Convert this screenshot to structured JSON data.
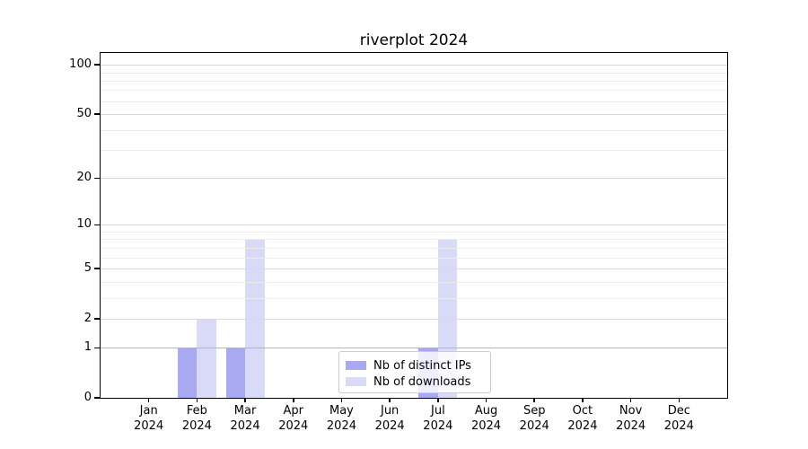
{
  "title": "riverplot 2024",
  "chart_data": {
    "type": "bar",
    "title": "riverplot 2024",
    "categories": [
      "Jan",
      "Feb",
      "Mar",
      "Apr",
      "May",
      "Jun",
      "Jul",
      "Aug",
      "Sep",
      "Oct",
      "Nov",
      "Dec"
    ],
    "year_label": "2024",
    "series": [
      {
        "name": "Nb of distinct IPs",
        "color": "#a9a9f2",
        "values": [
          0,
          1,
          1,
          0,
          0,
          0,
          1,
          0,
          0,
          0,
          0,
          0
        ]
      },
      {
        "name": "Nb of downloads",
        "color": "#d9d9f8",
        "values": [
          0,
          2,
          8,
          0,
          0,
          0,
          8,
          0,
          0,
          0,
          0,
          0
        ]
      }
    ],
    "y_scale": "log1p",
    "ylim": [
      0,
      118
    ],
    "y_major_ticks": [
      0,
      1,
      2,
      5,
      10,
      20,
      50,
      100
    ],
    "y_minor_gridlines": [
      3,
      4,
      6,
      7,
      8,
      9,
      30,
      40,
      60,
      70,
      80,
      90
    ],
    "grid": true,
    "legend_position": "lower center",
    "colors": {
      "grid_major": "#d9d9d9",
      "grid_minor": "#ededed",
      "grid_baseline_one": "#b5b5b5",
      "axis": "#000000",
      "background": "#ffffff"
    }
  }
}
